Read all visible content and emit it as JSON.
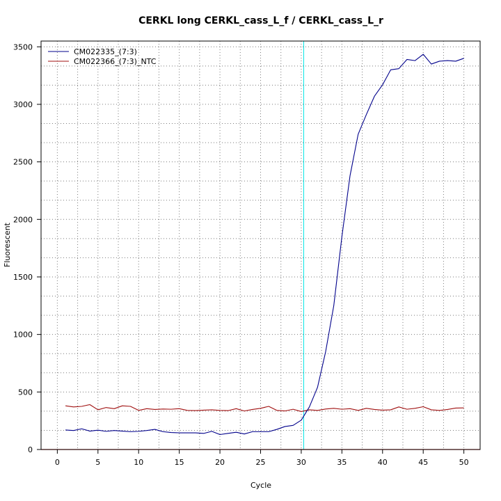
{
  "chart_data": {
    "type": "line",
    "title": "CERKL long CERKL_cass_L_f / CERKL_cass_L_r",
    "xlabel": "Cycle",
    "ylabel": "Fluorescent",
    "xlim": [
      -2,
      52
    ],
    "ylim": [
      0,
      3550
    ],
    "x_ticks": [
      0,
      5,
      10,
      15,
      20,
      25,
      30,
      35,
      40,
      45,
      50
    ],
    "y_ticks": [
      0,
      500,
      1000,
      1500,
      2000,
      2500,
      3000,
      3500
    ],
    "grid": true,
    "grid_style": "dotted",
    "grid_x_every": 2.5,
    "grid_y_every": 166.67,
    "threshold_line": {
      "orientation": "vertical",
      "x": 30.3,
      "color": "#00e5e5"
    },
    "baseline_line": {
      "y": 0,
      "color": "#e02020"
    },
    "legend": "top-left",
    "x": [
      1,
      2,
      3,
      4,
      5,
      6,
      7,
      8,
      9,
      10,
      11,
      12,
      13,
      14,
      15,
      16,
      17,
      18,
      19,
      20,
      21,
      22,
      23,
      24,
      25,
      26,
      27,
      28,
      29,
      30,
      31,
      32,
      33,
      34,
      35,
      36,
      37,
      38,
      39,
      40,
      41,
      42,
      43,
      44,
      45,
      46,
      47,
      48,
      49,
      50
    ],
    "series": [
      {
        "name": "CM022335_(7:3)",
        "color": "#00008b",
        "values": [
          170,
          165,
          180,
          160,
          168,
          158,
          165,
          160,
          155,
          158,
          165,
          175,
          155,
          148,
          145,
          145,
          145,
          140,
          158,
          130,
          140,
          150,
          135,
          155,
          155,
          155,
          175,
          200,
          210,
          255,
          370,
          540,
          850,
          1250,
          1850,
          2380,
          2740,
          2910,
          3070,
          3170,
          3300,
          3310,
          3390,
          3380,
          3435,
          3350,
          3375,
          3380,
          3375,
          3400
        ]
      },
      {
        "name": "CM022366_(7:3)_NTC",
        "color": "#a01010",
        "values": [
          380,
          370,
          375,
          390,
          345,
          365,
          355,
          380,
          375,
          340,
          355,
          348,
          352,
          350,
          355,
          340,
          338,
          342,
          345,
          340,
          338,
          355,
          335,
          348,
          358,
          375,
          340,
          335,
          350,
          330,
          345,
          340,
          352,
          358,
          350,
          355,
          340,
          358,
          348,
          342,
          345,
          370,
          350,
          358,
          372,
          345,
          340,
          348,
          360,
          362
        ]
      }
    ]
  }
}
